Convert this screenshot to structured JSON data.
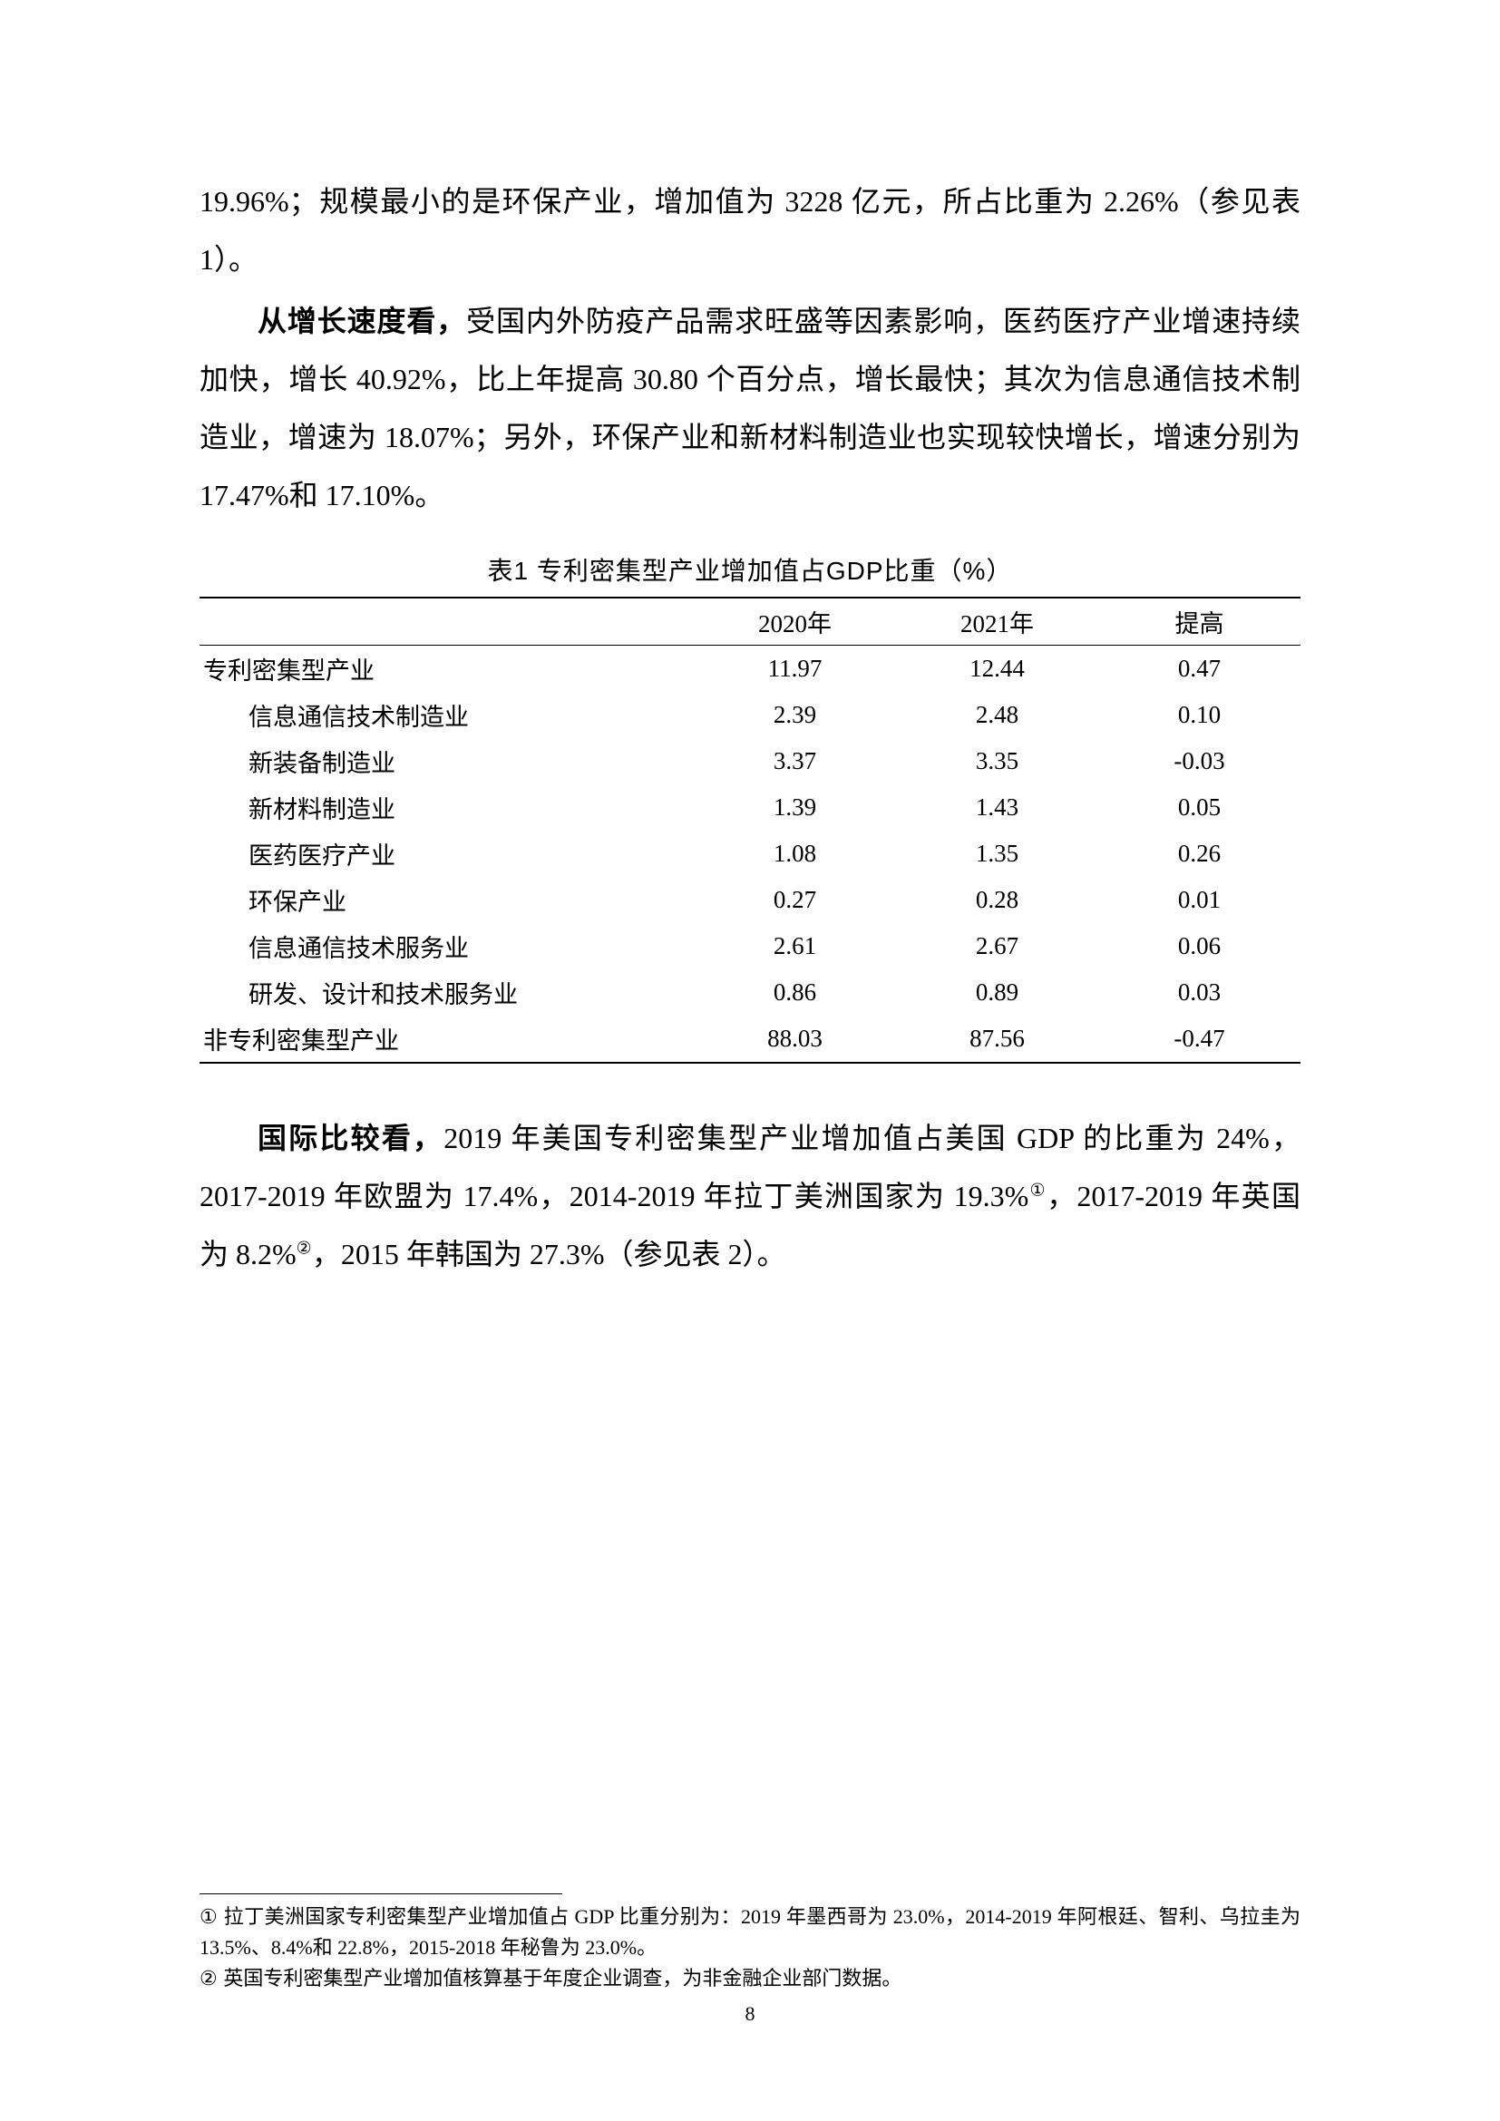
{
  "para1_lead": "19.96%；规模最小的是环保产业，增加值为 3228 亿元，所占比重为 2.26%（参见表 1）。",
  "para2_bold": "从增长速度看，",
  "para2_rest": "受国内外防疫产品需求旺盛等因素影响，医药医疗产业增速持续加快，增长 40.92%，比上年提高 30.80 个百分点，增长最快；其次为信息通信技术制造业，增速为 18.07%；另外，环保产业和新材料制造业也实现较快增长，增速分别为 17.47%和 17.10%。",
  "table": {
    "caption": "表1  专利密集型产业增加值占GDP比重（%）",
    "columns": [
      "",
      "2020年",
      "2021年",
      "提高"
    ],
    "rows": [
      {
        "label": "专利密集型产业",
        "indent": 0,
        "v2020": "11.97",
        "v2021": "12.44",
        "rise": "0.47"
      },
      {
        "label": "信息通信技术制造业",
        "indent": 1,
        "v2020": "2.39",
        "v2021": "2.48",
        "rise": "0.10"
      },
      {
        "label": "新装备制造业",
        "indent": 1,
        "v2020": "3.37",
        "v2021": "3.35",
        "rise": "-0.03"
      },
      {
        "label": "新材料制造业",
        "indent": 1,
        "v2020": "1.39",
        "v2021": "1.43",
        "rise": "0.05"
      },
      {
        "label": "医药医疗产业",
        "indent": 1,
        "v2020": "1.08",
        "v2021": "1.35",
        "rise": "0.26"
      },
      {
        "label": "环保产业",
        "indent": 1,
        "v2020": "0.27",
        "v2021": "0.28",
        "rise": "0.01"
      },
      {
        "label": "信息通信技术服务业",
        "indent": 1,
        "v2020": "2.61",
        "v2021": "2.67",
        "rise": "0.06"
      },
      {
        "label": "研发、设计和技术服务业",
        "indent": 1,
        "v2020": "0.86",
        "v2021": "0.89",
        "rise": "0.03"
      },
      {
        "label": "非专利密集型产业",
        "indent": 0,
        "v2020": "88.03",
        "v2021": "87.56",
        "rise": "-0.47"
      }
    ]
  },
  "para3_bold": "国际比较看，",
  "para3_seg1": "2019 年美国专利密集型产业增加值占美国 GDP 的比重为 24%，2017-2019 年欧盟为 17.4%，2014-2019 年拉丁美洲国家为 19.3%",
  "para3_sup1": "①",
  "para3_seg2": "，2017-2019 年英国为 8.2%",
  "para3_sup2": "②",
  "para3_seg3": "，2015 年韩国为 27.3%（参见表 2）。",
  "footnotes": {
    "fn1_mark": "①",
    "fn1_text": "拉丁美洲国家专利密集型产业增加值占 GDP 比重分别为：2019 年墨西哥为 23.0%，2014-2019 年阿根廷、智利、乌拉圭为 13.5%、8.4%和 22.8%，2015-2018 年秘鲁为 23.0%。",
    "fn2_mark": "②",
    "fn2_text": "英国专利密集型产业增加值核算基于年度企业调查，为非金融企业部门数据。"
  },
  "page_number": "8",
  "colors": {
    "text": "#000000",
    "bg": "#ffffff",
    "rule": "#000000"
  }
}
